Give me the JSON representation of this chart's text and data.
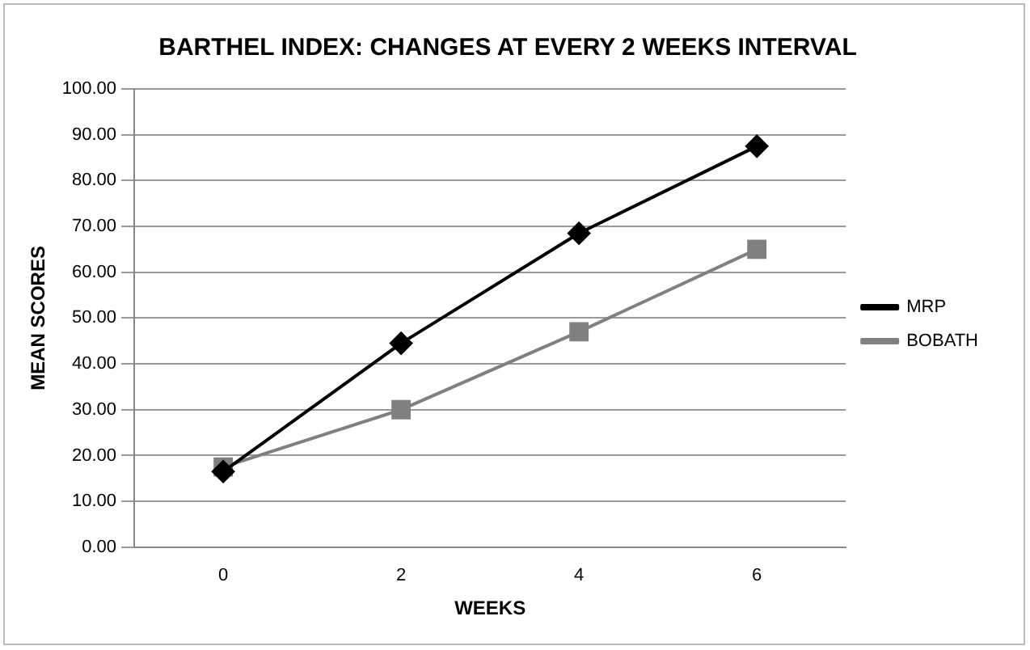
{
  "chart_data": {
    "type": "line",
    "title": "BARTHEL INDEX: CHANGES AT EVERY 2 WEEKS INTERVAL",
    "xlabel": "WEEKS",
    "ylabel": "MEAN SCORES",
    "categories": [
      "0",
      "2",
      "4",
      "6"
    ],
    "series": [
      {
        "name": "MRP",
        "color": "#000000",
        "marker": "diamond",
        "values": [
          16.5,
          44.5,
          68.5,
          87.5
        ]
      },
      {
        "name": "BOBATH",
        "color": "#808080",
        "marker": "square",
        "values": [
          17.5,
          30,
          47,
          65
        ]
      }
    ],
    "ylim": [
      0,
      100
    ],
    "yticks": [
      {
        "value": 0,
        "label": "0.00"
      },
      {
        "value": 10,
        "label": "10.00"
      },
      {
        "value": 20,
        "label": "20.00"
      },
      {
        "value": 30,
        "label": "30.00"
      },
      {
        "value": 40,
        "label": "40.00"
      },
      {
        "value": 50,
        "label": "50.00"
      },
      {
        "value": 60,
        "label": "60.00"
      },
      {
        "value": 70,
        "label": "70.00"
      },
      {
        "value": 80,
        "label": "80.00"
      },
      {
        "value": 90,
        "label": "90.00"
      },
      {
        "value": 100,
        "label": "100.00"
      }
    ],
    "grid": "y",
    "legend": "right",
    "line_style": "solid"
  }
}
